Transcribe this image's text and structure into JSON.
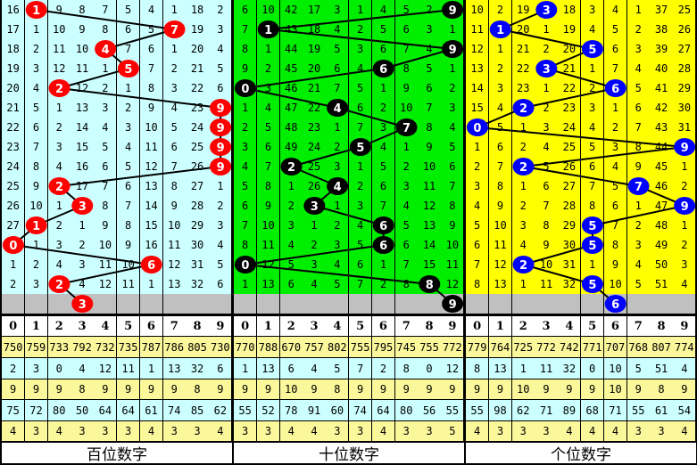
{
  "chart_data": {
    "type": "table",
    "header_digits": [
      "0",
      "1",
      "2",
      "3",
      "4",
      "5",
      "6",
      "7",
      "8",
      "9"
    ],
    "panels": [
      {
        "label": "百位数字",
        "bg_color": "#ccffff",
        "ball_color": "#ff0000",
        "rows": [
          [
            16,
            1,
            9,
            8,
            7,
            5,
            4,
            1,
            18,
            2
          ],
          [
            17,
            1,
            10,
            9,
            8,
            6,
            5,
            7,
            19,
            3
          ],
          [
            18,
            2,
            11,
            10,
            4,
            7,
            6,
            1,
            20,
            4
          ],
          [
            19,
            3,
            12,
            11,
            1,
            5,
            7,
            2,
            21,
            5
          ],
          [
            20,
            4,
            2,
            12,
            2,
            1,
            8,
            3,
            22,
            6
          ],
          [
            21,
            5,
            1,
            13,
            3,
            2,
            9,
            4,
            23,
            9
          ],
          [
            22,
            6,
            2,
            14,
            4,
            3,
            10,
            5,
            24,
            9
          ],
          [
            23,
            7,
            3,
            15,
            5,
            4,
            11,
            6,
            25,
            9
          ],
          [
            24,
            8,
            4,
            16,
            6,
            5,
            12,
            7,
            26,
            9
          ],
          [
            25,
            9,
            2,
            17,
            7,
            6,
            13,
            8,
            27,
            1
          ],
          [
            26,
            10,
            1,
            3,
            8,
            7,
            14,
            9,
            28,
            2
          ],
          [
            27,
            1,
            2,
            1,
            9,
            8,
            15,
            10,
            29,
            3
          ],
          [
            0,
            1,
            3,
            2,
            10,
            9,
            16,
            11,
            30,
            4
          ],
          [
            1,
            2,
            4,
            3,
            11,
            10,
            6,
            12,
            31,
            5
          ],
          [
            2,
            3,
            2,
            4,
            12,
            11,
            1,
            13,
            32,
            6
          ]
        ],
        "hits": [
          1,
          7,
          4,
          5,
          2,
          9,
          9,
          9,
          9,
          2,
          3,
          1,
          0,
          6,
          2
        ],
        "next": 3,
        "stats": [
          [
            750,
            759,
            733,
            792,
            732,
            735,
            787,
            786,
            805,
            730
          ],
          [
            2,
            3,
            0,
            4,
            12,
            11,
            1,
            13,
            32,
            6
          ],
          [
            9,
            9,
            9,
            8,
            9,
            9,
            9,
            9,
            8,
            9
          ],
          [
            75,
            72,
            80,
            50,
            64,
            64,
            61,
            74,
            85,
            62
          ],
          [
            4,
            3,
            4,
            3,
            3,
            3,
            4,
            3,
            3,
            4
          ]
        ]
      },
      {
        "label": "十位数字",
        "bg_color": "#00ee00",
        "ball_color": "#000000",
        "rows": [
          [
            6,
            10,
            42,
            17,
            3,
            1,
            4,
            5,
            2,
            9
          ],
          [
            7,
            1,
            43,
            18,
            4,
            2,
            5,
            6,
            3,
            1
          ],
          [
            8,
            1,
            44,
            19,
            5,
            3,
            6,
            7,
            4,
            9
          ],
          [
            9,
            2,
            45,
            20,
            6,
            4,
            6,
            8,
            5,
            1
          ],
          [
            0,
            3,
            46,
            21,
            7,
            5,
            1,
            9,
            6,
            2
          ],
          [
            1,
            4,
            47,
            22,
            4,
            6,
            2,
            10,
            7,
            3
          ],
          [
            2,
            5,
            48,
            23,
            1,
            7,
            3,
            7,
            8,
            4
          ],
          [
            3,
            6,
            49,
            24,
            2,
            5,
            4,
            1,
            9,
            5
          ],
          [
            4,
            7,
            2,
            25,
            3,
            1,
            5,
            2,
            10,
            6
          ],
          [
            5,
            8,
            1,
            26,
            4,
            2,
            6,
            3,
            11,
            7
          ],
          [
            6,
            9,
            2,
            3,
            1,
            3,
            7,
            4,
            12,
            8
          ],
          [
            7,
            10,
            3,
            1,
            2,
            4,
            6,
            5,
            13,
            9
          ],
          [
            8,
            11,
            4,
            2,
            3,
            5,
            6,
            6,
            14,
            10
          ],
          [
            0,
            12,
            5,
            3,
            4,
            6,
            1,
            7,
            15,
            11
          ],
          [
            1,
            13,
            6,
            4,
            5,
            7,
            2,
            8,
            8,
            12
          ]
        ],
        "hits": [
          9,
          1,
          9,
          6,
          0,
          4,
          7,
          5,
          2,
          4,
          3,
          6,
          6,
          0,
          8
        ],
        "next": 9,
        "stats": [
          [
            770,
            788,
            670,
            757,
            802,
            755,
            795,
            745,
            755,
            772
          ],
          [
            1,
            13,
            6,
            4,
            5,
            7,
            2,
            8,
            0,
            12
          ],
          [
            9,
            9,
            10,
            9,
            8,
            9,
            9,
            9,
            9,
            9
          ],
          [
            55,
            52,
            78,
            91,
            60,
            74,
            64,
            80,
            56,
            55
          ],
          [
            3,
            3,
            4,
            4,
            3,
            3,
            4,
            3,
            3,
            5
          ]
        ]
      },
      {
        "label": "个位数字",
        "bg_color": "#ffff00",
        "ball_color": "#0000ff",
        "rows": [
          [
            10,
            2,
            19,
            3,
            18,
            3,
            4,
            1,
            37,
            25
          ],
          [
            11,
            1,
            20,
            1,
            19,
            4,
            5,
            2,
            38,
            26
          ],
          [
            12,
            1,
            21,
            2,
            20,
            5,
            6,
            3,
            39,
            27
          ],
          [
            13,
            2,
            22,
            3,
            21,
            1,
            7,
            4,
            40,
            28
          ],
          [
            14,
            3,
            23,
            1,
            22,
            2,
            6,
            5,
            41,
            29
          ],
          [
            15,
            4,
            2,
            2,
            23,
            3,
            1,
            6,
            42,
            30
          ],
          [
            0,
            5,
            1,
            3,
            24,
            4,
            2,
            7,
            43,
            31
          ],
          [
            1,
            6,
            2,
            4,
            25,
            5,
            3,
            8,
            44,
            9
          ],
          [
            2,
            7,
            2,
            5,
            26,
            6,
            4,
            9,
            45,
            1
          ],
          [
            3,
            8,
            1,
            6,
            27,
            7,
            5,
            7,
            46,
            2
          ],
          [
            4,
            9,
            2,
            7,
            28,
            8,
            6,
            1,
            47,
            9
          ],
          [
            5,
            10,
            3,
            8,
            29,
            5,
            7,
            2,
            48,
            1
          ],
          [
            6,
            11,
            4,
            9,
            30,
            5,
            8,
            3,
            49,
            2
          ],
          [
            7,
            12,
            2,
            10,
            31,
            1,
            9,
            4,
            50,
            3
          ],
          [
            8,
            13,
            1,
            11,
            32,
            5,
            10,
            5,
            51,
            4
          ]
        ],
        "hits": [
          3,
          1,
          5,
          3,
          6,
          2,
          0,
          9,
          2,
          7,
          9,
          5,
          5,
          2,
          5
        ],
        "next": 6,
        "stats": [
          [
            779,
            764,
            725,
            772,
            742,
            771,
            707,
            768,
            807,
            774
          ],
          [
            8,
            13,
            1,
            11,
            32,
            0,
            10,
            5,
            51,
            4
          ],
          [
            9,
            9,
            10,
            9,
            9,
            9,
            10,
            9,
            8,
            9
          ],
          [
            55,
            98,
            62,
            71,
            89,
            68,
            71,
            55,
            61,
            54
          ],
          [
            4,
            3,
            3,
            3,
            4,
            4,
            4,
            3,
            3,
            4
          ]
        ]
      }
    ]
  }
}
